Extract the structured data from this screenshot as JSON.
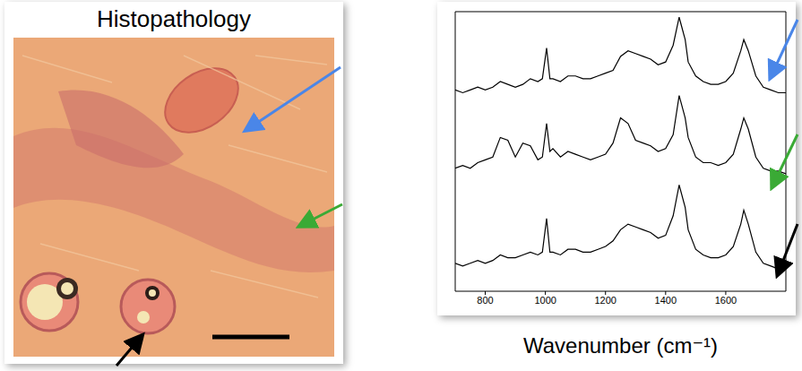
{
  "image_panel": {
    "title": "Histopathology"
  },
  "chart_data": {
    "type": "line",
    "x_label": "Wavenumber (cm⁻¹)",
    "x": [
      700,
      725,
      750,
      775,
      800,
      825,
      850,
      875,
      900,
      925,
      950,
      975,
      990,
      1004,
      1015,
      1025,
      1050,
      1075,
      1100,
      1125,
      1150,
      1175,
      1200,
      1225,
      1250,
      1275,
      1300,
      1325,
      1350,
      1375,
      1400,
      1425,
      1445,
      1465,
      1475,
      1500,
      1525,
      1550,
      1575,
      1600,
      1625,
      1650,
      1660,
      1675,
      1700,
      1725,
      1750,
      1775,
      1800
    ],
    "xlim": [
      700,
      1800
    ],
    "xticks": [
      800,
      1000,
      1200,
      1400,
      1600
    ],
    "ylim": [
      0,
      100
    ],
    "tick_labels": "x",
    "series": [
      {
        "color": "#000000",
        "values": [
          72,
          71,
          72,
          73,
          72,
          73,
          75,
          74,
          73,
          74,
          76,
          75,
          76,
          87,
          76,
          76,
          75,
          77,
          77,
          76,
          76,
          77,
          78,
          79,
          84,
          86,
          85,
          84,
          83,
          81,
          82,
          88,
          98,
          90,
          82,
          77,
          75,
          74,
          74,
          75,
          78,
          86,
          90,
          86,
          77,
          73,
          72,
          71,
          71
        ]
      },
      {
        "color": "#000000",
        "values": [
          44,
          45,
          44,
          46,
          47,
          48,
          55,
          54,
          48,
          53,
          52,
          47,
          48,
          60,
          50,
          51,
          48,
          50,
          49,
          48,
          47,
          48,
          49,
          53,
          62,
          60,
          54,
          53,
          52,
          50,
          51,
          56,
          70,
          62,
          55,
          48,
          46,
          46,
          45,
          46,
          49,
          58,
          62,
          58,
          48,
          44,
          43,
          43,
          42
        ]
      },
      {
        "color": "#000000",
        "values": [
          10,
          9,
          10,
          11,
          10,
          11,
          13,
          12,
          12,
          13,
          14,
          13,
          14,
          26,
          14,
          14,
          13,
          15,
          15,
          14,
          14,
          15,
          16,
          18,
          22,
          24,
          23,
          22,
          21,
          19,
          20,
          27,
          38,
          30,
          22,
          15,
          13,
          12,
          12,
          13,
          16,
          24,
          29,
          24,
          14,
          10,
          9,
          8,
          8
        ]
      }
    ]
  }
}
